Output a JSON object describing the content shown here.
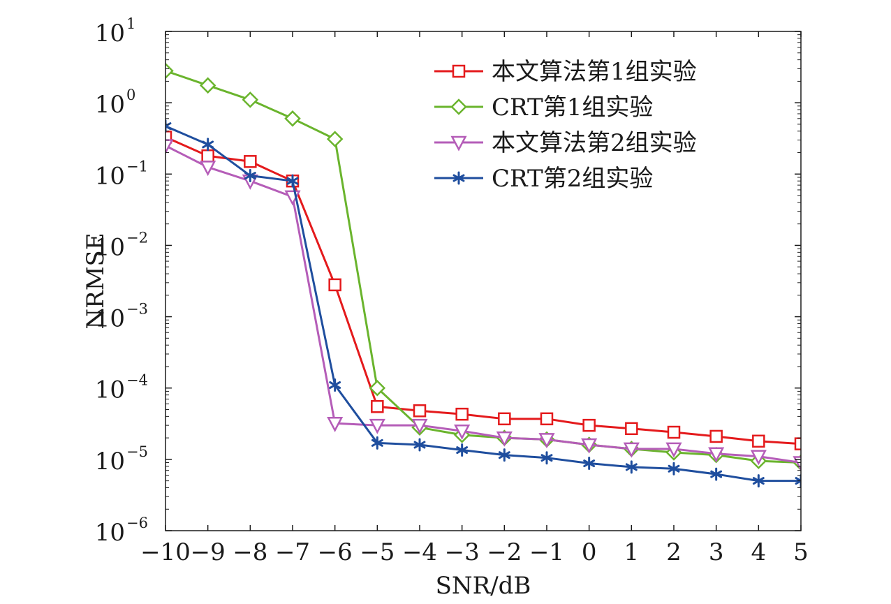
{
  "chart_data": {
    "type": "line",
    "xlabel": "SNR/dB",
    "ylabel": "NRMSE",
    "yscale": "log",
    "xlim": [
      -10,
      5
    ],
    "ylim": [
      1e-06,
      10
    ],
    "x": [
      -10,
      -9,
      -8,
      -7,
      -6,
      -5,
      -4,
      -3,
      -2,
      -1,
      0,
      1,
      2,
      3,
      4,
      5
    ],
    "x_tick_labels": [
      "−10",
      "−9",
      "−8",
      "−7",
      "−6",
      "−5",
      "−4",
      "−3",
      "−2",
      "−1",
      "0",
      "1",
      "2",
      "3",
      "4",
      "5"
    ],
    "y_ticks": [
      {
        "value": 10,
        "base": "10",
        "exp": "1"
      },
      {
        "value": 1,
        "base": "10",
        "exp": "0"
      },
      {
        "value": 0.1,
        "base": "10",
        "exp": "−1"
      },
      {
        "value": 0.01,
        "base": "10",
        "exp": "−2"
      },
      {
        "value": 0.001,
        "base": "10",
        "exp": "−3"
      },
      {
        "value": 0.0001,
        "base": "10",
        "exp": "−4"
      },
      {
        "value": 1e-05,
        "base": "10",
        "exp": "−5"
      },
      {
        "value": 1e-06,
        "base": "10",
        "exp": "−6"
      }
    ],
    "grid": false,
    "legend_position": "top-right",
    "series": [
      {
        "name": "本文算法第1组实验",
        "color": "#e41a1c",
        "marker": "square",
        "values": [
          0.33,
          0.18,
          0.15,
          0.08,
          0.0028,
          5.5e-05,
          4.8e-05,
          4.3e-05,
          3.7e-05,
          3.7e-05,
          3e-05,
          2.7e-05,
          2.4e-05,
          2.1e-05,
          1.8e-05,
          1.65e-05
        ]
      },
      {
        "name": "CRT第1组实验",
        "color": "#6ab42d",
        "marker": "diamond",
        "values": [
          2.8,
          1.75,
          1.1,
          0.6,
          0.31,
          0.0001,
          2.8e-05,
          2.2e-05,
          2e-05,
          1.9e-05,
          1.6e-05,
          1.4e-05,
          1.25e-05,
          1.15e-05,
          9.5e-06,
          9e-06
        ]
      },
      {
        "name": "本文算法第2组实验",
        "color": "#b55db8",
        "marker": "triangle-down",
        "values": [
          0.25,
          0.125,
          0.08,
          0.048,
          3.2e-05,
          3e-05,
          3e-05,
          2.5e-05,
          2e-05,
          1.9e-05,
          1.6e-05,
          1.4e-05,
          1.4e-05,
          1.2e-05,
          1.1e-05,
          9e-06
        ]
      },
      {
        "name": "CRT第2组实验",
        "color": "#1f4e9e",
        "marker": "asterisk",
        "values": [
          0.47,
          0.26,
          0.095,
          0.08,
          0.00011,
          1.7e-05,
          1.6e-05,
          1.35e-05,
          1.15e-05,
          1.05e-05,
          8.8e-06,
          7.8e-06,
          7.4e-06,
          6.2e-06,
          5e-06,
          5e-06
        ]
      }
    ]
  }
}
